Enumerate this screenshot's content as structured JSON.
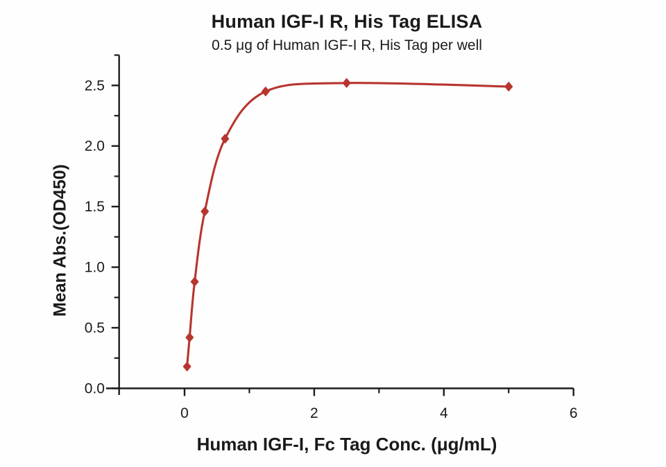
{
  "chart_data": {
    "type": "scatter",
    "title": "Human IGF-I R, His Tag ELISA",
    "subtitle": "0.5 μg of Human IGF-I R, His Tag per well",
    "xlabel": "Human IGF-I, Fc Tag Conc. (μg/mL)",
    "ylabel": "Mean Abs.(OD450)",
    "x": [
      0.039,
      0.078,
      0.156,
      0.313,
      0.625,
      1.25,
      2.5,
      5
    ],
    "y": [
      0.18,
      0.42,
      0.88,
      1.46,
      2.06,
      2.45,
      2.52,
      2.49
    ],
    "x_major_ticks": [
      0,
      2,
      4,
      6
    ],
    "x_minor_ticks": [
      1,
      3,
      5
    ],
    "y_major_ticks": [
      0.0,
      0.5,
      1.0,
      1.5,
      2.0,
      2.5
    ],
    "y_minor_ticks": [
      0.25,
      0.75,
      1.25,
      1.75,
      2.25,
      2.75
    ],
    "xlim": [
      -1.2,
      6
    ],
    "ylim": [
      -0.05,
      2.75
    ],
    "grid": false,
    "legend_position": "none",
    "marker": "diamond",
    "fit_curve": "4PL sigmoidal through points",
    "series_color": "#b7352e",
    "axis_color": "#1c1c1c"
  }
}
